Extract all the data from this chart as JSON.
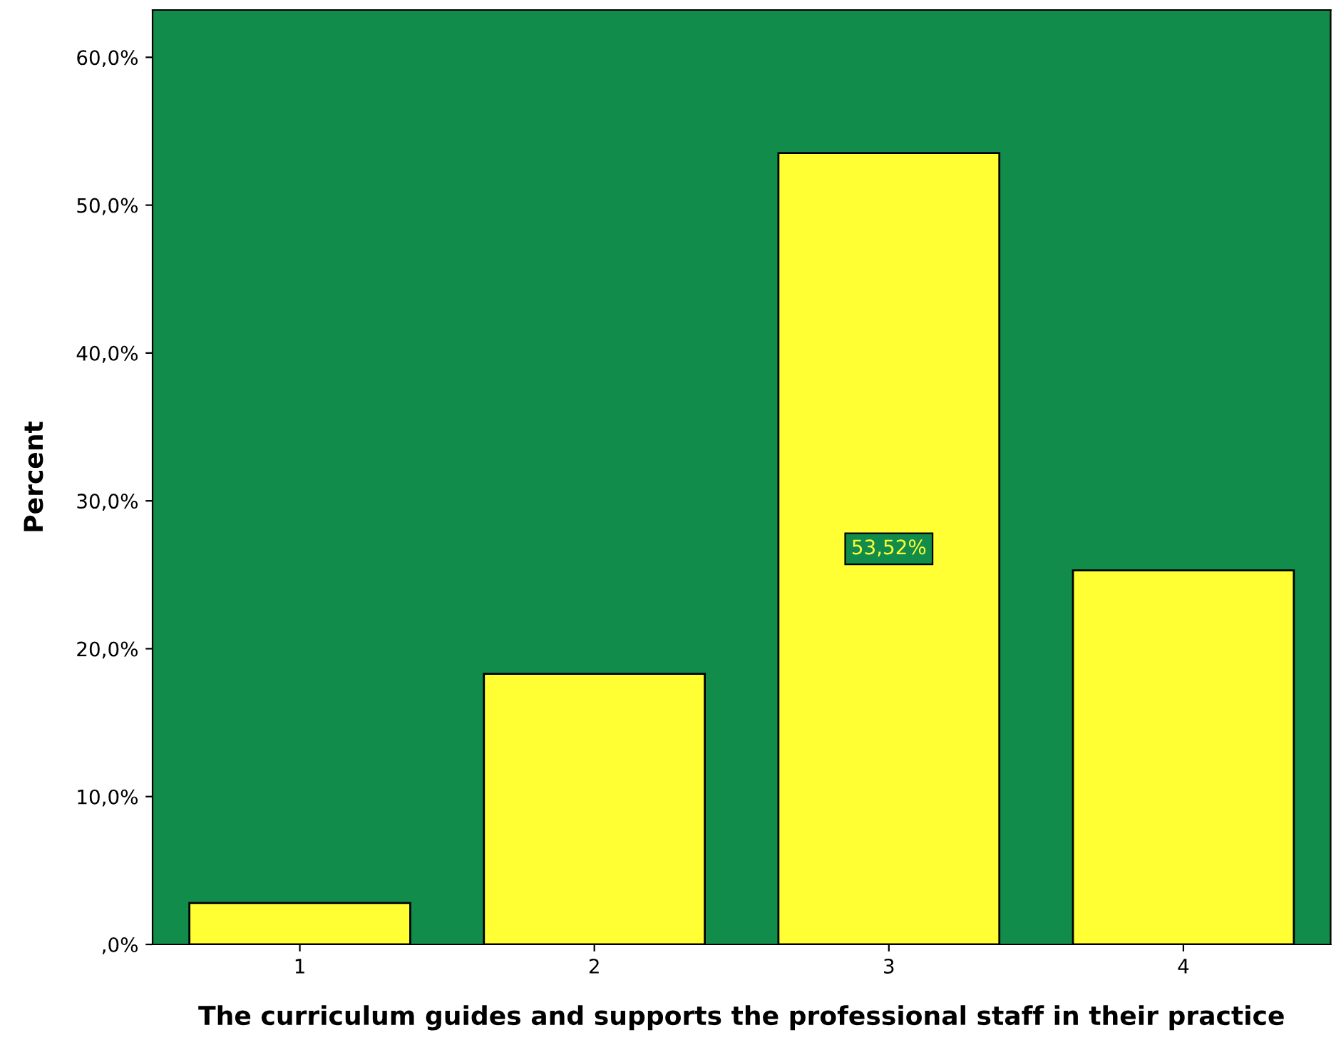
{
  "chart_data": {
    "type": "bar",
    "xlabel": "The curriculum guides and supports the professional staff in their practice",
    "ylabel": "Percent",
    "categories": [
      "1",
      "2",
      "3",
      "4"
    ],
    "values": [
      2.8,
      18.3,
      53.52,
      25.3
    ],
    "value_labels": [
      null,
      null,
      "53,52%",
      null
    ],
    "color": "#ffff33",
    "ylim": [
      0,
      63.2
    ],
    "yticks": [
      {
        "value": 0,
        "label": ",0%"
      },
      {
        "value": 10,
        "label": "10,0%"
      },
      {
        "value": 20,
        "label": "20,0%"
      },
      {
        "value": 30,
        "label": "30,0%"
      },
      {
        "value": 40,
        "label": "40,0%"
      },
      {
        "value": 50,
        "label": "50,0%"
      },
      {
        "value": 60,
        "label": "60,0%"
      }
    ],
    "grid": false,
    "legend": false
  }
}
